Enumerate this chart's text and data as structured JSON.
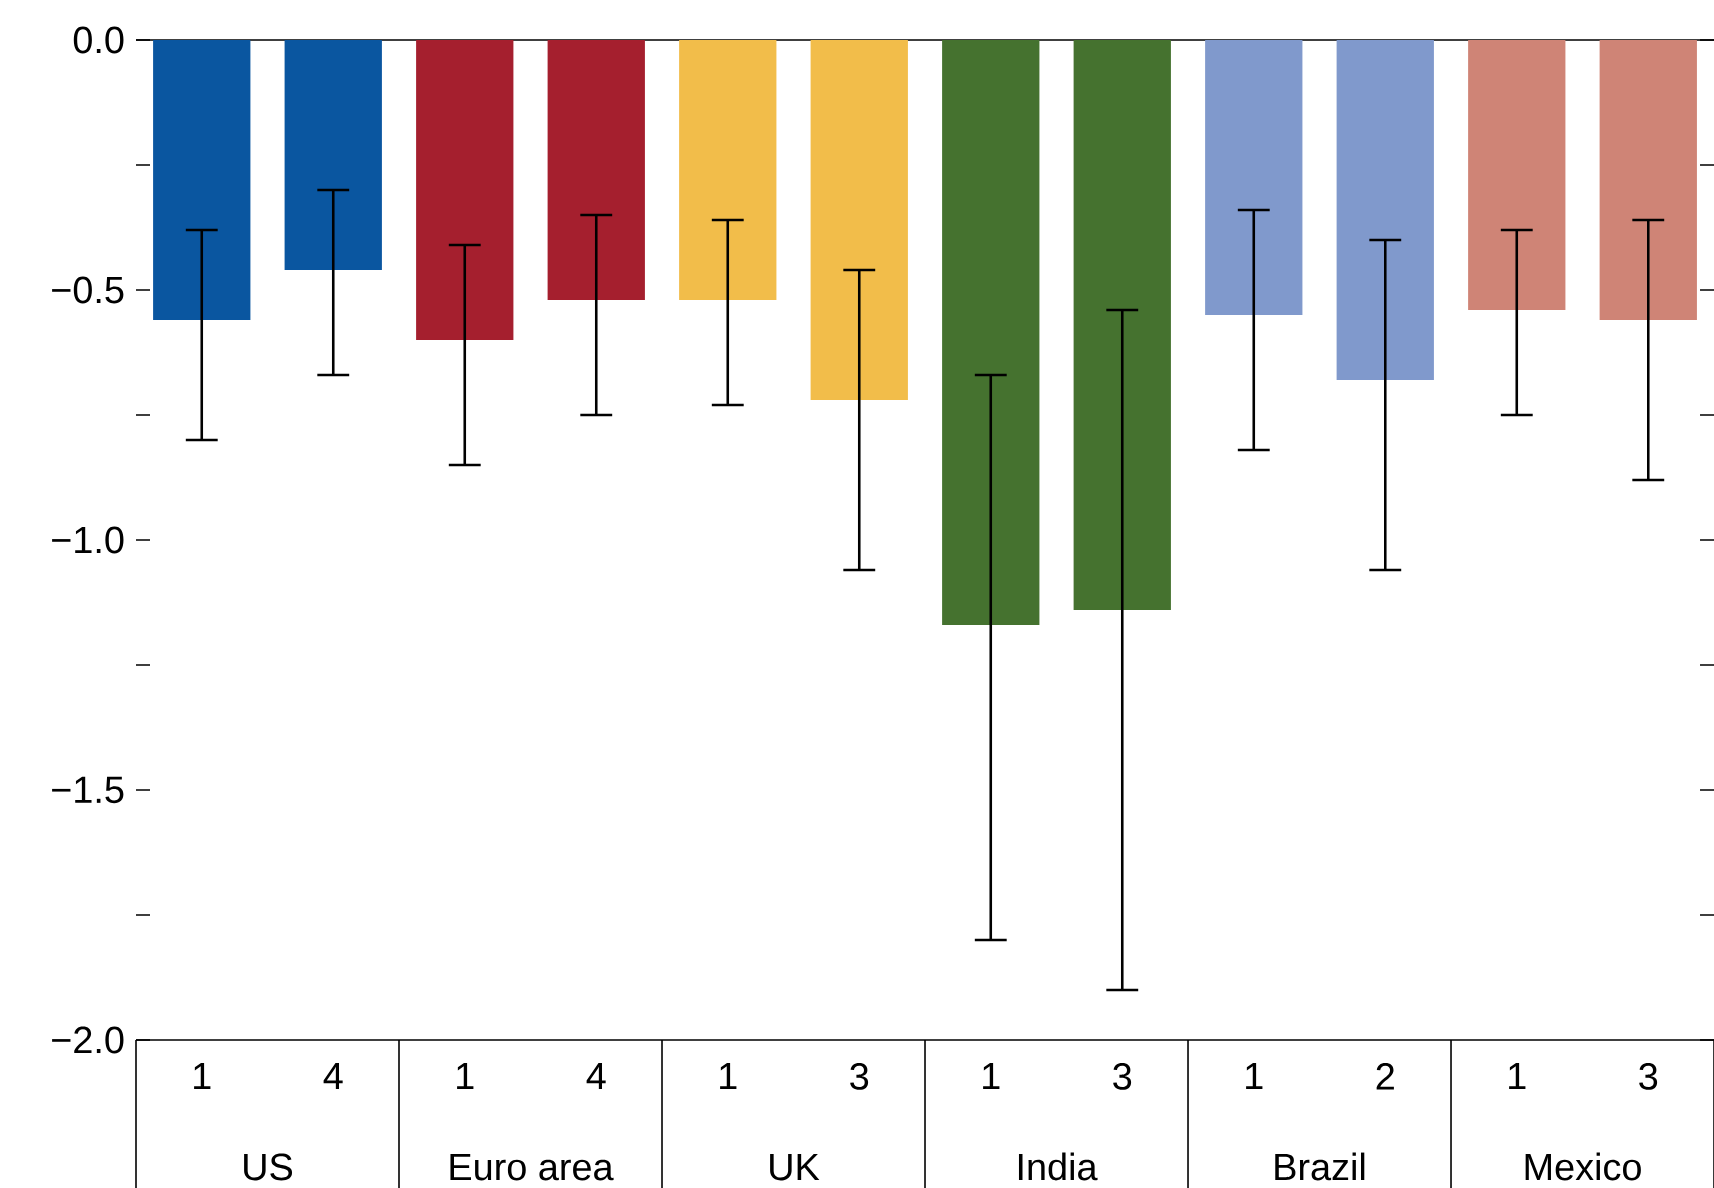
{
  "chart_data": {
    "type": "bar",
    "categories": [
      "1",
      "4",
      "1",
      "4",
      "1",
      "3",
      "1",
      "3",
      "1",
      "2",
      "1",
      "3"
    ],
    "values": [
      -0.56,
      -0.46,
      -0.6,
      -0.52,
      -0.52,
      -0.72,
      -1.17,
      -1.14,
      -0.55,
      -0.68,
      -0.54,
      -0.56
    ],
    "colors": [
      "#0a56a0",
      "#0a56a0",
      "#a51f2e",
      "#a51f2e",
      "#f2bd4a",
      "#f2bd4a",
      "#45722f",
      "#45722f",
      "#8099cc",
      "#8099cc",
      "#cf8476",
      "#cf8476"
    ],
    "errors": [
      [
        -0.8,
        -0.38
      ],
      [
        -0.67,
        -0.3
      ],
      [
        -0.85,
        -0.41
      ],
      [
        -0.75,
        -0.35
      ],
      [
        -0.73,
        -0.36
      ],
      [
        -1.06,
        -0.46
      ],
      [
        -1.8,
        -0.67
      ],
      [
        -1.9,
        -0.54
      ],
      [
        -0.82,
        -0.34
      ],
      [
        -1.06,
        -0.4
      ],
      [
        -0.75,
        -0.38
      ],
      [
        -0.88,
        -0.36
      ]
    ],
    "annotations": [
      "US",
      "Euro area",
      "UK",
      "India",
      "Brazil",
      "Mexico"
    ],
    "ylim": [
      -2,
      0
    ],
    "yticks": [
      {
        "value": 0,
        "label": "0.0"
      },
      {
        "value": -0.25,
        "label": null
      },
      {
        "value": -0.5,
        "label": "−0.5"
      },
      {
        "value": -0.75,
        "label": null
      },
      {
        "value": -1,
        "label": "−1.0"
      },
      {
        "value": -1.25,
        "label": null
      },
      {
        "value": -1.5,
        "label": "−1.5"
      },
      {
        "value": -1.75,
        "label": null
      },
      {
        "value": -2,
        "label": "−2.0"
      }
    ]
  }
}
